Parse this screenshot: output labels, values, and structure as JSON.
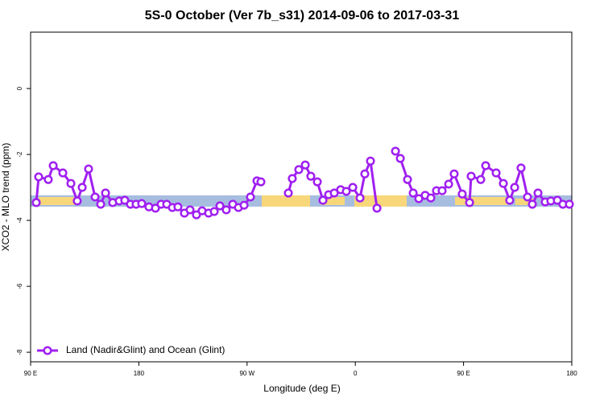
{
  "chart_data": {
    "type": "line",
    "title": "5S-0 October (Ver 7b_s31)   2014-09-06 to 2017-03-31",
    "x_label": "Longitude (deg E)",
    "y_label": "XCO2 - MLO trend (ppm)",
    "xlim": [
      90,
      540
    ],
    "ylim": [
      -8.29,
      1.71
    ],
    "xticks": [
      {
        "value": 90,
        "label": "90 E"
      },
      180,
      {
        "value": 270,
        "label": "90 W"
      },
      {
        "value": 360,
        "label": "0"
      },
      {
        "value": 450,
        "label": "90 E"
      },
      {
        "value": 540,
        "label": "180"
      }
    ],
    "yticks": [
      0,
      -2,
      -4,
      -6,
      -8
    ],
    "legend": "bottom-left",
    "x": [
      94.7,
      96.7,
      104.7,
      108.8,
      116.8,
      123.5,
      128.8,
      132.9,
      138.2,
      143.6,
      148.3,
      152.3,
      158.3,
      163.7,
      168.3,
      173,
      177.7,
      182.4,
      188.4,
      193.8,
      198.5,
      203.2,
      207.9,
      212.5,
      217.9,
      222.6,
      227.9,
      232.6,
      238,
      242.7,
      247.4,
      252.7,
      258.1,
      262.8,
      267.5,
      272.8,
      278.2,
      281.5,
      293,
      304.3,
      307.6,
      313,
      318.4,
      323,
      328.4,
      333.1,
      337.8,
      342.5,
      347.8,
      352.5,
      357.9,
      363.9,
      367.9,
      372.6,
      378,
      385,
      393.4,
      397.4,
      403.4,
      408.1,
      412.8,
      418.1,
      422.8,
      427.5,
      432.2,
      437.6,
      442.2,
      448.9,
      455,
      456.3,
      464.3,
      468.4,
      477.1,
      483.1,
      488.4,
      492.5,
      497.8,
      503.2,
      507.2,
      511.9,
      517.9,
      522.6,
      528,
      532.6,
      538
    ],
    "series": [
      {
        "name": "Land (Nadir&Glint) and Ocean (Glint)",
        "color": "#a020f0",
        "values": [
          -3.46,
          -2.68,
          -2.76,
          -2.34,
          -2.56,
          -2.88,
          -3.41,
          -3.0,
          -2.44,
          -3.29,
          -3.51,
          -3.17,
          -3.46,
          -3.41,
          -3.39,
          -3.51,
          -3.51,
          -3.49,
          -3.59,
          -3.63,
          -3.51,
          -3.51,
          -3.61,
          -3.59,
          -3.78,
          -3.68,
          -3.83,
          -3.71,
          -3.78,
          -3.73,
          -3.56,
          -3.68,
          -3.51,
          -3.61,
          -3.54,
          -3.29,
          -2.8,
          -2.83,
          null,
          -3.17,
          -2.73,
          -2.46,
          -2.32,
          -2.66,
          -2.83,
          -3.39,
          -3.22,
          -3.17,
          -3.07,
          -3.12,
          -3.0,
          -3.32,
          -2.59,
          -2.2,
          -3.63,
          null,
          -1.9,
          -2.12,
          -2.76,
          -3.17,
          -3.34,
          -3.24,
          -3.32,
          -3.1,
          -3.1,
          -2.9,
          -2.59,
          -3.2,
          -3.46,
          -2.66,
          -2.76,
          -2.34,
          -2.56,
          -2.88,
          -3.39,
          -3.0,
          -2.41,
          -3.29,
          -3.51,
          -3.17,
          -3.44,
          -3.41,
          -3.39,
          -3.51,
          -3.51
        ]
      }
    ]
  }
}
